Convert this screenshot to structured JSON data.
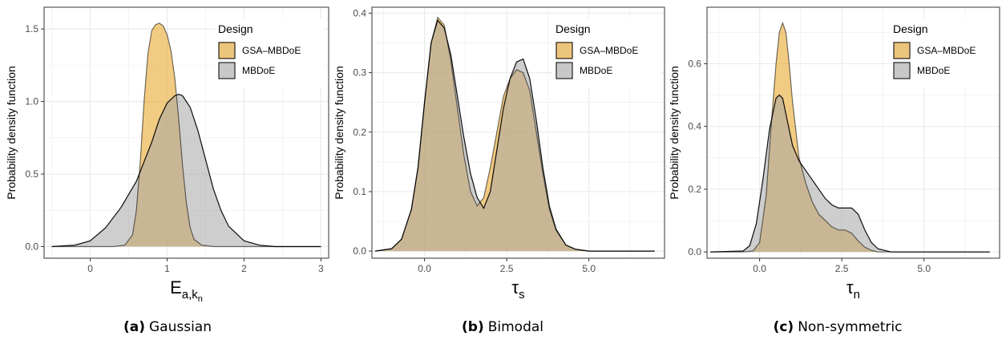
{
  "colors": {
    "gsa": "#E8A11C",
    "mbdoe": "#A6A6A6",
    "grid": "#EBEBEB",
    "axis": "#333333"
  },
  "panels": [
    {
      "label": "(a)",
      "caption": "Gaussian"
    },
    {
      "label": "(b)",
      "caption": "Bimodal"
    },
    {
      "label": "(c)",
      "caption": "Non-symmetric"
    }
  ],
  "chart_data": [
    {
      "type": "area",
      "xlabel_base": "E",
      "xlabel_sub": "a,k",
      "xlabel_subsub": "n",
      "ylabel": "Probability density function",
      "xlim": [
        -0.6,
        3.1
      ],
      "ylim": [
        -0.08,
        1.65
      ],
      "xticks": [
        0,
        1,
        2,
        3
      ],
      "xtick_labels": [
        "0",
        "1",
        "2",
        "3"
      ],
      "xminor": [
        -0.5,
        0.5,
        1.5,
        2.5
      ],
      "yticks": [
        0.0,
        0.5,
        1.0,
        1.5
      ],
      "ytick_labels": [
        "0.0",
        "0.5",
        "1.0",
        "1.5"
      ],
      "yminor": [
        0.25,
        0.75,
        1.25
      ],
      "legend_title": "Design",
      "series": [
        {
          "name": "GSA–MBDoE",
          "color_key": "gsa",
          "x": [
            -0.5,
            0.3,
            0.45,
            0.55,
            0.6,
            0.65,
            0.7,
            0.75,
            0.8,
            0.85,
            0.9,
            0.95,
            1.0,
            1.05,
            1.1,
            1.15,
            1.2,
            1.25,
            1.3,
            1.35,
            1.45,
            1.6,
            3.0
          ],
          "y": [
            0,
            0,
            0.01,
            0.08,
            0.25,
            0.58,
            1.0,
            1.33,
            1.49,
            1.53,
            1.54,
            1.52,
            1.46,
            1.35,
            1.16,
            0.88,
            0.56,
            0.3,
            0.13,
            0.05,
            0.01,
            0,
            0
          ]
        },
        {
          "name": "MBDoE",
          "color_key": "mbdoe",
          "x": [
            -0.5,
            -0.2,
            0.0,
            0.2,
            0.4,
            0.6,
            0.8,
            0.9,
            1.0,
            1.1,
            1.15,
            1.2,
            1.3,
            1.4,
            1.5,
            1.6,
            1.7,
            1.8,
            2.0,
            2.2,
            2.4,
            3.0
          ],
          "y": [
            0,
            0.01,
            0.04,
            0.13,
            0.27,
            0.45,
            0.72,
            0.88,
            0.99,
            1.04,
            1.05,
            1.04,
            0.96,
            0.8,
            0.6,
            0.4,
            0.25,
            0.14,
            0.04,
            0.01,
            0,
            0
          ]
        }
      ]
    },
    {
      "type": "area",
      "xlabel_base": "τ",
      "xlabel_sub": "s",
      "xlabel_subsub": "",
      "ylabel": "Probability density function",
      "xlim": [
        -1.6,
        7.3
      ],
      "ylim": [
        -0.012,
        0.41
      ],
      "xticks": [
        0,
        2.5,
        5
      ],
      "xtick_labels": [
        "0.0",
        "2.5",
        "5.0"
      ],
      "xminor": [
        -1.25,
        1.25,
        3.75,
        6.25
      ],
      "yticks": [
        0.0,
        0.1,
        0.2,
        0.3,
        0.4
      ],
      "ytick_labels": [
        "0.0",
        "0.1",
        "0.2",
        "0.3",
        "0.4"
      ],
      "yminor": [
        0.05,
        0.15,
        0.25,
        0.35
      ],
      "legend_title": "Design",
      "series": [
        {
          "name": "GSA–MBDoE",
          "color_key": "gsa",
          "x": [
            -1.5,
            -1.0,
            -0.7,
            -0.4,
            -0.2,
            0.0,
            0.2,
            0.4,
            0.6,
            0.8,
            1.0,
            1.2,
            1.4,
            1.6,
            1.8,
            2.0,
            2.2,
            2.4,
            2.6,
            2.8,
            3.0,
            3.2,
            3.4,
            3.6,
            3.8,
            4.0,
            4.3,
            4.6,
            5.0,
            7.0
          ],
          "y": [
            0,
            0.004,
            0.02,
            0.07,
            0.14,
            0.25,
            0.35,
            0.393,
            0.38,
            0.32,
            0.24,
            0.16,
            0.1,
            0.076,
            0.09,
            0.14,
            0.2,
            0.26,
            0.29,
            0.305,
            0.3,
            0.27,
            0.2,
            0.13,
            0.07,
            0.035,
            0.01,
            0.003,
            0,
            0
          ]
        },
        {
          "name": "MBDoE",
          "color_key": "mbdoe",
          "x": [
            -1.5,
            -1.0,
            -0.7,
            -0.4,
            -0.2,
            0.0,
            0.2,
            0.4,
            0.6,
            0.8,
            1.0,
            1.2,
            1.4,
            1.6,
            1.8,
            2.0,
            2.2,
            2.4,
            2.6,
            2.8,
            3.0,
            3.2,
            3.4,
            3.6,
            3.8,
            4.0,
            4.3,
            4.6,
            5.0,
            7.0
          ],
          "y": [
            0,
            0.004,
            0.02,
            0.07,
            0.14,
            0.25,
            0.35,
            0.388,
            0.375,
            0.33,
            0.26,
            0.19,
            0.13,
            0.09,
            0.072,
            0.1,
            0.17,
            0.24,
            0.29,
            0.318,
            0.323,
            0.29,
            0.22,
            0.14,
            0.075,
            0.037,
            0.01,
            0.003,
            0,
            0
          ]
        }
      ]
    },
    {
      "type": "area",
      "xlabel_base": "τ",
      "xlabel_sub": "n",
      "xlabel_subsub": "",
      "ylabel": "Probability density function",
      "xlim": [
        -1.6,
        7.3
      ],
      "ylim": [
        -0.02,
        0.78
      ],
      "xticks": [
        0,
        2.5,
        5
      ],
      "xtick_labels": [
        "0.0",
        "2.5",
        "5.0"
      ],
      "xminor": [
        -1.25,
        1.25,
        3.75,
        6.25
      ],
      "yticks": [
        0.0,
        0.2,
        0.4,
        0.6
      ],
      "ytick_labels": [
        "0.0",
        "0.2",
        "0.4",
        "0.6"
      ],
      "yminor": [
        0.1,
        0.3,
        0.5,
        0.7
      ],
      "legend_title": "Design",
      "series": [
        {
          "name": "GSA–MBDoE",
          "color_key": "gsa",
          "x": [
            -1.5,
            -0.5,
            -0.2,
            0.0,
            0.2,
            0.35,
            0.5,
            0.6,
            0.7,
            0.8,
            0.9,
            1.0,
            1.2,
            1.4,
            1.6,
            1.8,
            2.0,
            2.2,
            2.4,
            2.6,
            2.8,
            3.0,
            3.2,
            3.4,
            3.6,
            4.0,
            7.0
          ],
          "y": [
            0,
            0,
            0.003,
            0.03,
            0.18,
            0.4,
            0.6,
            0.7,
            0.73,
            0.7,
            0.6,
            0.48,
            0.3,
            0.22,
            0.16,
            0.12,
            0.1,
            0.08,
            0.07,
            0.07,
            0.06,
            0.035,
            0.015,
            0.005,
            0,
            0,
            0
          ]
        },
        {
          "name": "MBDoE",
          "color_key": "mbdoe",
          "x": [
            -1.5,
            -0.5,
            -0.3,
            -0.1,
            0.1,
            0.3,
            0.5,
            0.6,
            0.7,
            0.8,
            1.0,
            1.2,
            1.4,
            1.6,
            1.8,
            2.0,
            2.2,
            2.4,
            2.6,
            2.8,
            3.0,
            3.2,
            3.4,
            3.6,
            4.0,
            7.0
          ],
          "y": [
            0,
            0.003,
            0.02,
            0.09,
            0.23,
            0.39,
            0.49,
            0.5,
            0.49,
            0.44,
            0.34,
            0.29,
            0.26,
            0.23,
            0.2,
            0.17,
            0.15,
            0.14,
            0.14,
            0.14,
            0.12,
            0.07,
            0.03,
            0.01,
            0,
            0
          ]
        }
      ]
    }
  ]
}
